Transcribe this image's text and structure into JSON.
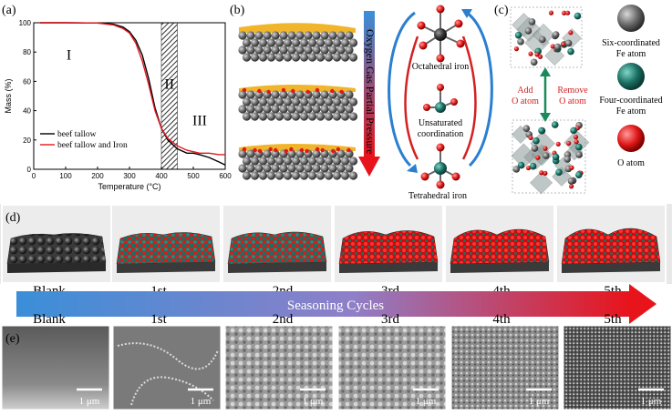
{
  "panels": {
    "a": "(a)",
    "b": "(b)",
    "c": "(c)",
    "d": "(d)",
    "e": "(e)"
  },
  "chart_data": {
    "type": "line",
    "xlabel": "Temperature (°C)",
    "ylabel": "Mass (%)",
    "xlim": [
      0,
      600
    ],
    "ylim": [
      0,
      100
    ],
    "xticks": [
      0,
      100,
      200,
      300,
      400,
      500,
      600
    ],
    "yticks": [
      0,
      20,
      40,
      60,
      80,
      100
    ],
    "regions": [
      "I",
      "II",
      "III"
    ],
    "hatched_range": [
      400,
      450
    ],
    "legend_position": "bottom-left",
    "series": [
      {
        "name": "beef tallow",
        "color": "#000000",
        "x": [
          20,
          100,
          200,
          250,
          280,
          300,
          320,
          340,
          360,
          380,
          400,
          420,
          450,
          480,
          500,
          520,
          550,
          580,
          600
        ],
        "y": [
          100,
          100,
          99.8,
          99,
          97,
          94,
          88,
          78,
          62,
          42,
          28,
          20,
          14,
          11,
          11,
          10,
          8,
          5,
          3
        ]
      },
      {
        "name": "beef tallow and Iron",
        "color": "#e0161e",
        "x": [
          20,
          100,
          200,
          250,
          280,
          300,
          320,
          340,
          360,
          380,
          400,
          420,
          450,
          480,
          500,
          520,
          550,
          580,
          600
        ],
        "y": [
          100,
          100,
          99.8,
          98.5,
          96,
          93,
          86,
          74,
          58,
          40,
          28,
          21,
          16,
          13,
          12,
          11,
          11,
          10,
          10
        ]
      }
    ]
  },
  "panel_b": {
    "axis_label": "Oxygen Gas Partial Pressure",
    "octahedral": "Octahedral iron",
    "unsaturated_1": "Unsaturated",
    "unsaturated_2": "coordination",
    "tetrahedral": "Tetrahedral iron"
  },
  "panel_c": {
    "add_1": "Add",
    "add_2": "O atom",
    "remove_1": "Remove",
    "remove_2": "O atom",
    "legend": [
      {
        "line1": "Six-coordinated",
        "line2": "Fe atom",
        "color": "#555555"
      },
      {
        "line1": "Four-coordinated",
        "line2": "Fe atom",
        "color": "#1a6e63"
      },
      {
        "line1": "O atom",
        "line2": "",
        "color": "#e02020"
      }
    ]
  },
  "panel_d": {
    "labels": [
      "Blank",
      "1st",
      "2nd",
      "3rd",
      "4th",
      "5th"
    ],
    "arrow_label": "Seasoning Cycles"
  },
  "panel_e": {
    "labels": [
      "Blank",
      "1st",
      "2nd",
      "3rd",
      "4th",
      "5th"
    ],
    "scale_bar": "1 μm"
  }
}
